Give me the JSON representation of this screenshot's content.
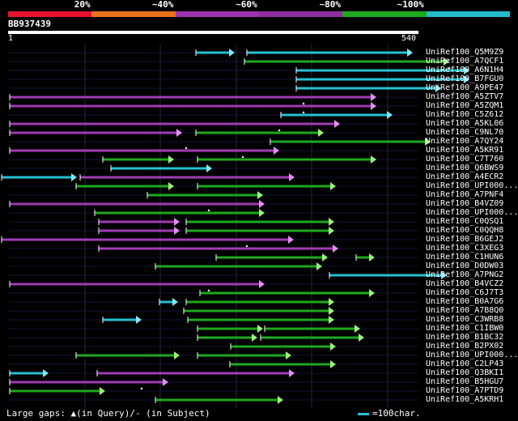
{
  "legend": {
    "segments": [
      {
        "color": "#e8122f",
        "label": ""
      },
      {
        "color": "#e8731c",
        "label": "20%"
      },
      {
        "color": "#9e33b0",
        "label": "~40%"
      },
      {
        "color": "#8e2da0",
        "label": "~60%"
      },
      {
        "color": "#1ea81e",
        "label": "~80%"
      },
      {
        "color": "#22bccc",
        "label": "~100%"
      }
    ]
  },
  "query": {
    "id": "BB937439",
    "start": "1",
    "end": "540",
    "length": 540
  },
  "hits": [
    {
      "label": "UniRef100_Q5M9Z9",
      "segs": [
        [
          240,
          290,
          "cyan"
        ],
        [
          303,
          510,
          "cyan"
        ]
      ],
      "query_gaps": []
    },
    {
      "label": "UniRef100_A7QCF1",
      "segs": [
        [
          300,
          555,
          "green"
        ]
      ],
      "query_gaps": [
        555
      ]
    },
    {
      "label": "UniRef100_A6N1H4",
      "segs": [
        [
          364,
          580,
          "cyan"
        ]
      ],
      "query_gaps": []
    },
    {
      "label": "UniRef100_B7FGU0",
      "segs": [
        [
          364,
          580,
          "cyan"
        ]
      ],
      "query_gaps": []
    },
    {
      "label": "UniRef100_A9PE47",
      "segs": [
        [
          364,
          545,
          "cyan"
        ]
      ],
      "query_gaps": []
    },
    {
      "label": "UniRef100_A5ZTV7",
      "segs": [
        [
          10,
          465,
          "magenta"
        ]
      ],
      "query_gaps": [
        375
      ]
    },
    {
      "label": "UniRef100_A5ZQM1",
      "segs": [
        [
          10,
          465,
          "magenta"
        ]
      ],
      "query_gaps": [
        375
      ]
    },
    {
      "label": "UniRef100_C5Z612",
      "segs": [
        [
          345,
          485,
          "cyan"
        ]
      ],
      "query_gaps": []
    },
    {
      "label": "UniRef100_A5KL06",
      "segs": [
        [
          10,
          420,
          "magenta"
        ]
      ],
      "query_gaps": [
        345
      ]
    },
    {
      "label": "UniRef100_C9NL70",
      "segs": [
        [
          10,
          225,
          "magenta"
        ],
        [
          240,
          400,
          "green"
        ]
      ],
      "query_gaps": []
    },
    {
      "label": "UniRef100_A7QY24",
      "segs": [
        [
          332,
          532,
          "green"
        ]
      ],
      "query_gaps": [
        230
      ]
    },
    {
      "label": "UniRef100_A5KR91",
      "segs": [
        [
          10,
          345,
          "magenta"
        ]
      ],
      "query_gaps": [
        300
      ]
    },
    {
      "label": "UniRef100_C7T760",
      "segs": [
        [
          125,
          215,
          "green"
        ],
        [
          242,
          465,
          "green"
        ]
      ],
      "query_gaps": []
    },
    {
      "label": "UniRef100_Q6BWS9",
      "segs": [
        [
          135,
          262,
          "cyan"
        ]
      ],
      "query_gaps": []
    },
    {
      "label": "UniRef100_A4ECR2",
      "segs": [
        [
          0,
          95,
          "cyan"
        ],
        [
          97,
          364,
          "magenta"
        ]
      ],
      "query_gaps": []
    },
    {
      "label": "UniRef100_UPI000...",
      "segs": [
        [
          92,
          215,
          "green"
        ],
        [
          242,
          415,
          "green"
        ]
      ],
      "query_gaps": []
    },
    {
      "label": "UniRef100_A7PNF4",
      "segs": [
        [
          180,
          325,
          "green"
        ]
      ],
      "query_gaps": []
    },
    {
      "label": "UniRef100_B4VZ09",
      "segs": [
        [
          10,
          327,
          "magenta"
        ]
      ],
      "query_gaps": [
        258
      ]
    },
    {
      "label": "UniRef100_UPI000...",
      "segs": [
        [
          115,
          327,
          "green"
        ]
      ],
      "query_gaps": []
    },
    {
      "label": "UniRef100_C0QSQ1",
      "segs": [
        [
          120,
          222,
          "magenta"
        ],
        [
          228,
          413,
          "green"
        ]
      ],
      "query_gaps": []
    },
    {
      "label": "UniRef100_C0QQH8",
      "segs": [
        [
          120,
          222,
          "magenta"
        ],
        [
          228,
          413,
          "green"
        ]
      ],
      "query_gaps": []
    },
    {
      "label": "UniRef100_B6GEJ2",
      "segs": [
        [
          0,
          363,
          "magenta"
        ]
      ],
      "query_gaps": [
        305
      ]
    },
    {
      "label": "UniRef100_C3XEG3",
      "segs": [
        [
          120,
          418,
          "magenta"
        ]
      ],
      "query_gaps": []
    },
    {
      "label": "UniRef100_C1HUN6",
      "segs": [
        [
          265,
          405,
          "green"
        ],
        [
          438,
          463,
          "green"
        ]
      ],
      "query_gaps": []
    },
    {
      "label": "UniRef100_D0DW03",
      "segs": [
        [
          190,
          398,
          "green"
        ]
      ],
      "query_gaps": []
    },
    {
      "label": "UniRef100_A7PNG2",
      "segs": [
        [
          405,
          552,
          "cyan"
        ]
      ],
      "query_gaps": []
    },
    {
      "label": "UniRef100_B4VCZ2",
      "segs": [
        [
          10,
          327,
          "magenta"
        ]
      ],
      "query_gaps": [
        258
      ]
    },
    {
      "label": "UniRef100_C6J7T3",
      "segs": [
        [
          245,
          463,
          "green"
        ]
      ],
      "query_gaps": []
    },
    {
      "label": "UniRef100_B0A7G6",
      "segs": [
        [
          195,
          220,
          "cyan"
        ],
        [
          228,
          413,
          "green"
        ]
      ],
      "query_gaps": []
    },
    {
      "label": "UniRef100_A7B8Q0",
      "segs": [
        [
          225,
          413,
          "green"
        ]
      ],
      "query_gaps": []
    },
    {
      "label": "UniRef100_C3WRB8",
      "segs": [
        [
          125,
          175,
          "cyan"
        ],
        [
          230,
          413,
          "green"
        ]
      ],
      "query_gaps": []
    },
    {
      "label": "UniRef100_C1IBW0",
      "segs": [
        [
          242,
          325,
          "green"
        ],
        [
          325,
          445,
          "green"
        ]
      ],
      "query_gaps": []
    },
    {
      "label": "UniRef100_B1BC32",
      "segs": [
        [
          242,
          318,
          "green"
        ],
        [
          320,
          450,
          "green"
        ]
      ],
      "query_gaps": []
    },
    {
      "label": "UniRef100_B2PX02",
      "segs": [
        [
          283,
          415,
          "green"
        ]
      ],
      "query_gaps": []
    },
    {
      "label": "UniRef100_UPI000...",
      "segs": [
        [
          92,
          222,
          "green"
        ],
        [
          242,
          360,
          "green"
        ]
      ],
      "query_gaps": []
    },
    {
      "label": "UniRef100_C2LP43",
      "segs": [
        [
          282,
          415,
          "green"
        ]
      ],
      "query_gaps": []
    },
    {
      "label": "UniRef100_Q3BKI1",
      "segs": [
        [
          10,
          60,
          "cyan"
        ],
        [
          118,
          364,
          "magenta"
        ]
      ],
      "query_gaps": []
    },
    {
      "label": "UniRef100_B5HGU7",
      "segs": [
        [
          10,
          208,
          "magenta"
        ]
      ],
      "query_gaps": [
        175
      ]
    },
    {
      "label": "UniRef100_A7PTD9",
      "segs": [
        [
          10,
          130,
          "green"
        ]
      ],
      "query_gaps": []
    },
    {
      "label": "UniRef100_A5KRH1",
      "segs": [
        [
          190,
          350,
          "green"
        ]
      ],
      "query_gaps": []
    }
  ],
  "footer": {
    "gaps_note": "Large gaps: ▲(in Query)/- (in Subject)",
    "scale_note": "=100char."
  },
  "colors": {
    "cyan": "#25c0d2",
    "green": "#1ea81e",
    "magenta": "#a03cb4",
    "grid": "#1a1a3a",
    "arrow_cyan": "#7fe8f0",
    "arrow_green": "#9cf07c",
    "arrow_magenta": "#e08ef0"
  }
}
